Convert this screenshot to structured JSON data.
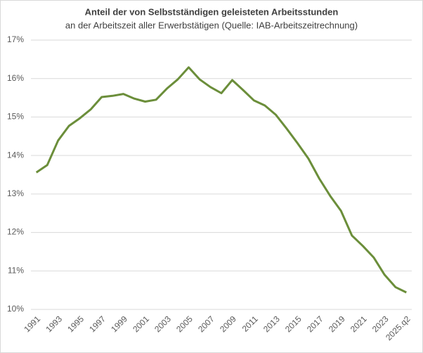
{
  "chart_data": {
    "type": "line",
    "title": "Anteil der von Selbstständigen geleisteten Arbeitsstunden",
    "subtitle": "an der Arbeitszeit aller Erwerbstätigen (Quelle: IAB-Arbeitszeitrechnung)",
    "categories": [
      "1991",
      null,
      "1993",
      null,
      "1995",
      null,
      "1997",
      null,
      "1999",
      null,
      "2001",
      null,
      "2003",
      null,
      "2005",
      null,
      "2007",
      null,
      "2009",
      null,
      "2011",
      null,
      "2013",
      null,
      "2015",
      null,
      "2017",
      null,
      "2019",
      null,
      "2021",
      null,
      "2023",
      null,
      "2025.q2"
    ],
    "series": [
      {
        "color": "#6b8e3a",
        "values": [
          13.56,
          13.75,
          14.39,
          14.77,
          14.97,
          15.2,
          15.52,
          15.55,
          15.6,
          15.48,
          15.4,
          15.45,
          15.74,
          15.98,
          16.29,
          15.98,
          15.78,
          15.62,
          15.96,
          15.7,
          15.43,
          15.3,
          15.06,
          14.7,
          14.32,
          13.92,
          13.4,
          12.95,
          12.56,
          11.92,
          11.65,
          11.35,
          10.9,
          10.58,
          10.44
        ]
      }
    ],
    "ylim": [
      10,
      17
    ],
    "yticks": [
      {
        "value": 10,
        "label": "10%"
      },
      {
        "value": 11,
        "label": "11%"
      },
      {
        "value": 12,
        "label": "12%"
      },
      {
        "value": 13,
        "label": "13%"
      },
      {
        "value": 14,
        "label": "14%"
      },
      {
        "value": 15,
        "label": "15%"
      },
      {
        "value": 16,
        "label": "16%"
      },
      {
        "value": 17,
        "label": "17%"
      }
    ],
    "grid": true
  }
}
